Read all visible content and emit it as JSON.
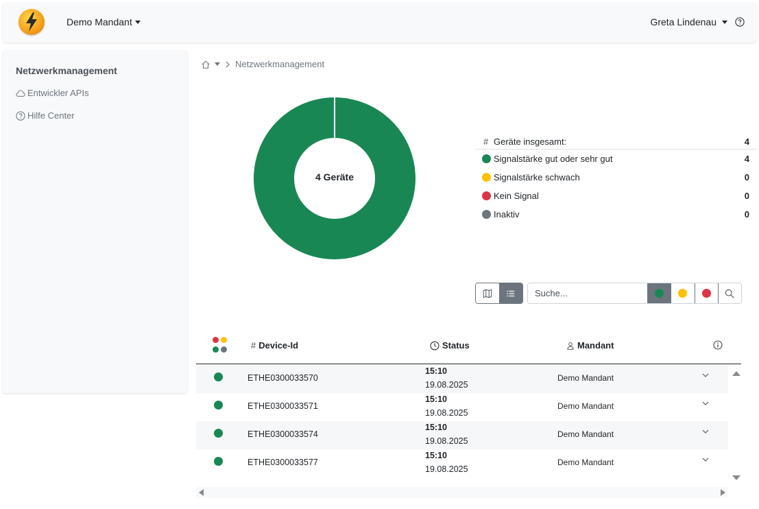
{
  "header": {
    "tenant": "Demo Mandant",
    "user": "Greta Lindenau",
    "help_icon": "question-circle-icon",
    "logo_icon": "lightning-bolt-icon"
  },
  "sidebar": {
    "title": "Netzwerkmanagement",
    "items": [
      {
        "label": "Entwickler APIs",
        "icon": "cloud-icon"
      },
      {
        "label": "Hilfe Center",
        "icon": "question-circle-icon"
      }
    ]
  },
  "breadcrumb": {
    "home_icon": "home-icon",
    "current": "Netzwerkmanagement"
  },
  "chart_data": {
    "type": "pie",
    "center_label": "4 Geräte",
    "categories": [
      "Signalstärke gut oder sehr gut",
      "Signalstärke schwach",
      "Kein Signal",
      "Inaktiv"
    ],
    "values": [
      4,
      0,
      0,
      0
    ],
    "colors": [
      "#198754",
      "#ffc107",
      "#dc3545",
      "#6c757d"
    ]
  },
  "stats": {
    "total_label": "Geräte insgesamt:",
    "total_value": "4",
    "rows": [
      {
        "label": "Signalstärke gut oder sehr gut",
        "value": "4",
        "color": "#198754"
      },
      {
        "label": "Signalstärke schwach",
        "value": "0",
        "color": "#ffc107"
      },
      {
        "label": "Kein Signal",
        "value": "0",
        "color": "#dc3545"
      },
      {
        "label": "Inaktiv",
        "value": "0",
        "color": "#6c757d"
      }
    ]
  },
  "toolbar": {
    "map_icon": "map-icon",
    "list_icon": "list-icon",
    "search_placeholder": "Suche...",
    "search_icon": "search-icon",
    "filters": [
      {
        "color": "#198754",
        "active": true
      },
      {
        "color": "#ffc107",
        "active": false
      },
      {
        "color": "#dc3545",
        "active": false
      }
    ]
  },
  "table": {
    "headers": {
      "device_id": "Device-Id",
      "status": "Status",
      "mandant": "Mandant"
    },
    "rows": [
      {
        "device_id": "ETHE0300033570",
        "time": "15:10",
        "date": "19.08.2025",
        "mandant": "Demo Mandant",
        "color": "#198754"
      },
      {
        "device_id": "ETHE0300033571",
        "time": "15:10",
        "date": "19.08.2025",
        "mandant": "Demo Mandant",
        "color": "#198754"
      },
      {
        "device_id": "ETHE0300033574",
        "time": "15:10",
        "date": "19.08.2025",
        "mandant": "Demo Mandant",
        "color": "#198754"
      },
      {
        "device_id": "ETHE0300033577",
        "time": "15:10",
        "date": "19.08.2025",
        "mandant": "Demo Mandant",
        "color": "#198754"
      }
    ]
  }
}
